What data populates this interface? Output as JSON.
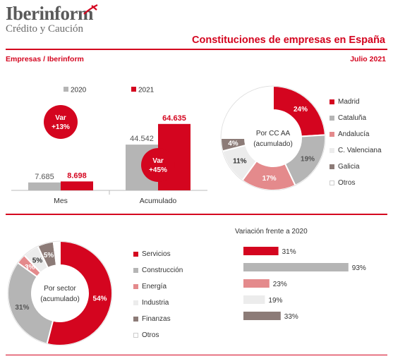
{
  "header": {
    "logo_main": "Iberinform",
    "logo_sub": "Crédito y Caución",
    "title": "Constituciones de empresas en España",
    "subtitle_left": "Empresas / Iberinform",
    "subtitle_right": "Julio 2021"
  },
  "colors": {
    "red": "#d4051f",
    "grey": "#b5b5b5",
    "pink": "#e48a8c",
    "light": "#ececec",
    "brown": "#8c7b77"
  },
  "chart_data": [
    {
      "type": "bar",
      "categories": [
        "Mes",
        "Acumulado"
      ],
      "series": [
        {
          "name": "2020",
          "values": [
            7685,
            44542
          ],
          "labels": [
            "7.685",
            "44.542"
          ],
          "color": "#b5b5b5"
        },
        {
          "name": "2021",
          "values": [
            8698,
            64635
          ],
          "labels": [
            "8.698",
            "64.635"
          ],
          "color": "#d4051f"
        }
      ],
      "ylim": [
        0,
        70000
      ],
      "annotations": [
        {
          "category": "Mes",
          "line1": "Var",
          "line2": "+13%"
        },
        {
          "category": "Acumulado",
          "line1": "Var",
          "line2": "+45%"
        }
      ]
    },
    {
      "type": "pie",
      "center_line1": "Por CC AA",
      "center_line2": "(acumulado)",
      "slices": [
        {
          "name": "Madrid",
          "value": 24,
          "label": "24%",
          "color": "#d4051f"
        },
        {
          "name": "Cataluña",
          "value": 19,
          "label": "19%",
          "color": "#b5b5b5"
        },
        {
          "name": "Andalucía",
          "value": 17,
          "label": "17%",
          "color": "#e48a8c"
        },
        {
          "name": "C. Valenciana",
          "value": 11,
          "label": "11%",
          "color": "#ececec"
        },
        {
          "name": "Galicia",
          "value": 4,
          "label": "4%",
          "color": "#8c7b77"
        },
        {
          "name": "Otros",
          "value": 25,
          "label": "",
          "color": "#ffffff"
        }
      ]
    },
    {
      "type": "pie",
      "center_line1": "Por sector",
      "center_line2": "(acumulado)",
      "slices": [
        {
          "name": "Servicios",
          "value": 54,
          "label": "54%",
          "color": "#d4051f"
        },
        {
          "name": "Construcción",
          "value": 31,
          "label": "31%",
          "color": "#b5b5b5"
        },
        {
          "name": "Energía",
          "value": 3,
          "label": "3%",
          "color": "#e48a8c"
        },
        {
          "name": "Industria",
          "value": 5,
          "label": "5%",
          "color": "#ececec"
        },
        {
          "name": "Finanzas",
          "value": 5,
          "label": "5%",
          "color": "#8c7b77"
        },
        {
          "name": "Otros",
          "value": 2,
          "label": "",
          "color": "#ffffff"
        }
      ]
    },
    {
      "type": "bar",
      "orientation": "horizontal",
      "title": "Variación frente a 2020",
      "categories": [
        "Servicios",
        "Construcción",
        "Energía",
        "Industria",
        "Finanzas"
      ],
      "values": [
        31,
        93,
        23,
        19,
        33
      ],
      "labels": [
        "31%",
        "93%",
        "23%",
        "19%",
        "33%"
      ],
      "colors": [
        "#d4051f",
        "#b5b5b5",
        "#e48a8c",
        "#ececec",
        "#8c7b77"
      ],
      "xlim": [
        0,
        100
      ]
    }
  ]
}
